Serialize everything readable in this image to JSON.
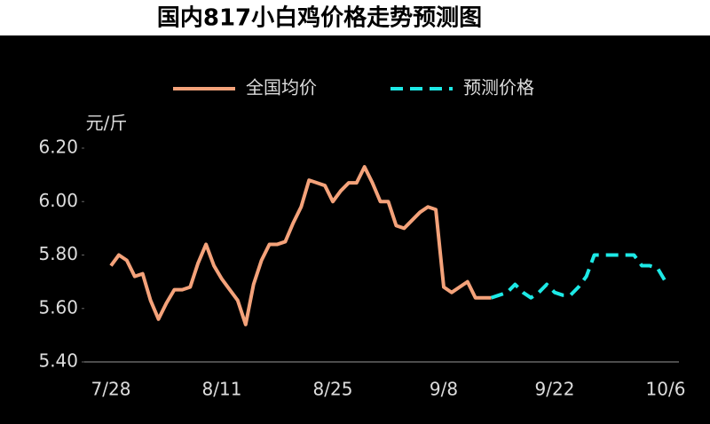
{
  "chart_data": {
    "type": "line",
    "title": "国内817小白鸡价格走势预测图",
    "y_label": "元/斤",
    "categories": [
      "7/28",
      null,
      null,
      null,
      null,
      null,
      null,
      null,
      null,
      null,
      null,
      null,
      null,
      null,
      "8/11",
      null,
      null,
      null,
      null,
      null,
      null,
      null,
      null,
      null,
      null,
      null,
      null,
      null,
      "8/25",
      null,
      null,
      null,
      null,
      null,
      null,
      null,
      null,
      null,
      null,
      null,
      null,
      null,
      "9/8",
      null,
      null,
      null,
      null,
      null,
      null,
      null,
      null,
      null,
      null,
      null,
      null,
      null,
      "9/22",
      null,
      null,
      null,
      null,
      null,
      null,
      null,
      null,
      null,
      null,
      null,
      null,
      null,
      "10/6"
    ],
    "series": [
      {
        "name": "全国均价",
        "color": "#f4a27a",
        "dash": false,
        "values": [
          5.76,
          5.8,
          5.78,
          5.72,
          5.73,
          5.63,
          5.56,
          5.62,
          5.67,
          5.67,
          5.68,
          5.77,
          5.84,
          5.76,
          5.71,
          5.67,
          5.63,
          5.54,
          5.69,
          5.78,
          5.84,
          5.84,
          5.85,
          5.92,
          5.98,
          6.08,
          6.07,
          6.06,
          6.0,
          6.04,
          6.07,
          6.07,
          6.13,
          6.07,
          6.0,
          6.0,
          5.91,
          5.9,
          5.93,
          5.96,
          5.98,
          5.97,
          5.68,
          5.66,
          5.68,
          5.7,
          5.64,
          5.64,
          5.64,
          null,
          null,
          null,
          null,
          null,
          null,
          null,
          null,
          null,
          null,
          null,
          null,
          null,
          null,
          null,
          null,
          null,
          null,
          null,
          null,
          null,
          null
        ]
      },
      {
        "name": "预测价格",
        "color": "#1de9e6",
        "dash": true,
        "values": [
          null,
          null,
          null,
          null,
          null,
          null,
          null,
          null,
          null,
          null,
          null,
          null,
          null,
          null,
          null,
          null,
          null,
          null,
          null,
          null,
          null,
          null,
          null,
          null,
          null,
          null,
          null,
          null,
          null,
          null,
          null,
          null,
          null,
          null,
          null,
          null,
          null,
          null,
          null,
          null,
          null,
          null,
          null,
          null,
          null,
          null,
          null,
          null,
          5.64,
          5.65,
          5.66,
          5.69,
          5.66,
          5.64,
          5.66,
          5.69,
          5.66,
          5.65,
          5.65,
          5.68,
          5.72,
          5.8,
          5.8,
          5.8,
          5.8,
          5.8,
          5.8,
          5.76,
          5.76,
          5.75,
          5.7
        ]
      }
    ],
    "ylim": [
      5.4,
      6.2
    ],
    "yticks": [
      {
        "value": 5.4,
        "label": "5.40"
      },
      {
        "value": 5.6,
        "label": "5.60"
      },
      {
        "value": 5.8,
        "label": "5.80"
      },
      {
        "value": 6.0,
        "label": "6.00"
      },
      {
        "value": 6.2,
        "label": "6.20"
      }
    ],
    "grid": false
  }
}
